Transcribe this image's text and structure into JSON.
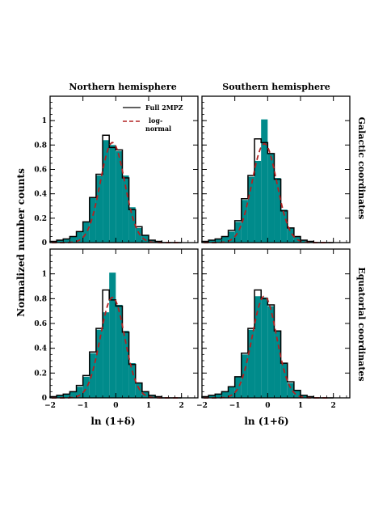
{
  "figure": {
    "ylabel": "Normalized number counts",
    "xlabel": "ln (1+δ)",
    "col_titles": [
      "Northern hemisphere",
      "Southern hemisphere"
    ],
    "row_labels": [
      "Galactic coordinates",
      "Equatorial coordinates"
    ],
    "legend": [
      {
        "label": "Full 2MPZ",
        "style": "solid",
        "color": "#000000"
      },
      {
        "label": "log-\nnormal",
        "style": "dashed",
        "color": "#b22222"
      }
    ],
    "colors": {
      "fill": "#008b8b",
      "outline": "#000000",
      "fit": "#b22222"
    },
    "xticks": [
      "−2",
      "−1",
      "0",
      "1",
      "2"
    ],
    "yticks": [
      "0",
      "0.2",
      "0.4",
      "0.6",
      "0.8",
      "1"
    ]
  },
  "chart_data": [
    {
      "type": "bar",
      "title": "Northern hemisphere",
      "row_label": "Galactic coordinates",
      "xlim": [
        -2,
        2.5
      ],
      "ylim": [
        0,
        1.2
      ],
      "bin_edges": [
        -2.0,
        -1.8,
        -1.6,
        -1.4,
        -1.2,
        -1.0,
        -0.8,
        -0.6,
        -0.4,
        -0.2,
        0.0,
        0.2,
        0.4,
        0.6,
        0.8,
        1.0,
        1.2,
        1.4,
        1.6,
        1.8,
        2.0
      ],
      "series": [
        {
          "name": "Full 2MPZ",
          "kind": "outline",
          "values": [
            0.01,
            0.02,
            0.03,
            0.05,
            0.09,
            0.17,
            0.37,
            0.56,
            0.88,
            0.78,
            0.76,
            0.53,
            0.27,
            0.13,
            0.06,
            0.02,
            0.01,
            0.0,
            0.0,
            0.0
          ]
        },
        {
          "kind": "fill",
          "values": [
            0.01,
            0.02,
            0.03,
            0.05,
            0.09,
            0.17,
            0.37,
            0.55,
            0.84,
            0.8,
            0.75,
            0.55,
            0.29,
            0.12,
            0.06,
            0.02,
            0.01,
            0.0,
            0.0,
            0.0
          ]
        }
      ],
      "fit": {
        "name": "log-normal",
        "mu": -0.1,
        "sigma": 0.37,
        "amplitude": 0.82
      }
    },
    {
      "type": "bar",
      "title": "Southern hemisphere",
      "row_label": "Galactic coordinates",
      "xlim": [
        -2,
        2.5
      ],
      "ylim": [
        0,
        1.2
      ],
      "bin_edges": [
        -2.0,
        -1.8,
        -1.6,
        -1.4,
        -1.2,
        -1.0,
        -0.8,
        -0.6,
        -0.4,
        -0.2,
        0.0,
        0.2,
        0.4,
        0.6,
        0.8,
        1.0,
        1.2,
        1.4,
        1.6,
        1.8,
        2.0
      ],
      "series": [
        {
          "name": "Full 2MPZ",
          "kind": "outline",
          "values": [
            0.01,
            0.02,
            0.03,
            0.05,
            0.1,
            0.18,
            0.36,
            0.55,
            0.85,
            0.82,
            0.73,
            0.52,
            0.26,
            0.12,
            0.05,
            0.02,
            0.01,
            0.0,
            0.0,
            0.0
          ]
        },
        {
          "kind": "fill",
          "values": [
            0.01,
            0.02,
            0.03,
            0.05,
            0.09,
            0.17,
            0.35,
            0.54,
            0.67,
            1.01,
            0.73,
            0.53,
            0.27,
            0.12,
            0.05,
            0.02,
            0.01,
            0.0,
            0.0,
            0.0
          ]
        }
      ],
      "fit": {
        "name": "log-normal",
        "mu": -0.1,
        "sigma": 0.38,
        "amplitude": 0.81
      }
    },
    {
      "type": "bar",
      "title": "",
      "row_label": "Equatorial coordinates",
      "xlim": [
        -2,
        2.5
      ],
      "ylim": [
        0,
        1.2
      ],
      "bin_edges": [
        -2.0,
        -1.8,
        -1.6,
        -1.4,
        -1.2,
        -1.0,
        -0.8,
        -0.6,
        -0.4,
        -0.2,
        0.0,
        0.2,
        0.4,
        0.6,
        0.8,
        1.0,
        1.2,
        1.4,
        1.6,
        1.8,
        2.0
      ],
      "series": [
        {
          "name": "Full 2MPZ",
          "kind": "outline",
          "values": [
            0.01,
            0.02,
            0.03,
            0.05,
            0.1,
            0.18,
            0.37,
            0.56,
            0.87,
            0.79,
            0.74,
            0.53,
            0.27,
            0.12,
            0.05,
            0.02,
            0.01,
            0.0,
            0.0,
            0.0
          ]
        },
        {
          "kind": "fill",
          "values": [
            0.01,
            0.02,
            0.03,
            0.05,
            0.09,
            0.17,
            0.36,
            0.55,
            0.69,
            1.01,
            0.75,
            0.54,
            0.28,
            0.12,
            0.05,
            0.02,
            0.01,
            0.0,
            0.0,
            0.0
          ]
        }
      ],
      "fit": {
        "name": "log-normal",
        "mu": -0.1,
        "sigma": 0.37,
        "amplitude": 0.81
      }
    },
    {
      "type": "bar",
      "title": "",
      "row_label": "Equatorial coordinates",
      "xlim": [
        -2,
        2.5
      ],
      "ylim": [
        0,
        1.2
      ],
      "bin_edges": [
        -2.0,
        -1.8,
        -1.6,
        -1.4,
        -1.2,
        -1.0,
        -0.8,
        -0.6,
        -0.4,
        -0.2,
        0.0,
        0.2,
        0.4,
        0.6,
        0.8,
        1.0,
        1.2,
        1.4,
        1.6,
        1.8,
        2.0
      ],
      "series": [
        {
          "name": "Full 2MPZ",
          "kind": "outline",
          "values": [
            0.01,
            0.02,
            0.03,
            0.05,
            0.09,
            0.17,
            0.36,
            0.56,
            0.87,
            0.8,
            0.75,
            0.54,
            0.28,
            0.13,
            0.06,
            0.02,
            0.01,
            0.0,
            0.0,
            0.0
          ]
        },
        {
          "kind": "fill",
          "values": [
            0.01,
            0.02,
            0.03,
            0.05,
            0.09,
            0.17,
            0.35,
            0.55,
            0.82,
            0.81,
            0.74,
            0.54,
            0.28,
            0.12,
            0.06,
            0.02,
            0.01,
            0.0,
            0.0,
            0.0
          ]
        }
      ],
      "fit": {
        "name": "log-normal",
        "mu": -0.1,
        "sigma": 0.37,
        "amplitude": 0.82
      }
    }
  ]
}
